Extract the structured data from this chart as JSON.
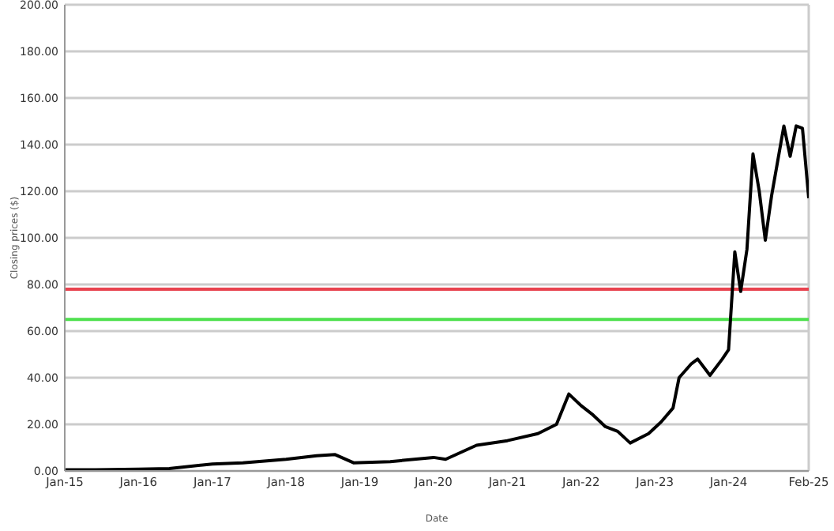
{
  "chart_data": {
    "type": "line",
    "xlabel": "Date",
    "ylabel": "Closing prices ($)",
    "x": [
      "2015-01",
      "2015-06",
      "2016-01",
      "2016-06",
      "2017-01",
      "2017-06",
      "2018-01",
      "2018-06",
      "2018-09",
      "2018-12",
      "2019-06",
      "2020-01",
      "2020-03",
      "2020-08",
      "2021-01",
      "2021-06",
      "2021-09",
      "2021-11",
      "2022-01",
      "2022-03",
      "2022-05",
      "2022-07",
      "2022-09",
      "2022-12",
      "2023-02",
      "2023-04",
      "2023-05",
      "2023-07",
      "2023-08",
      "2023-10",
      "2023-12",
      "2024-01",
      "2024-02",
      "2024-03",
      "2024-04",
      "2024-05",
      "2024-06",
      "2024-07",
      "2024-08",
      "2024-10",
      "2024-11",
      "2024-12",
      "2025-01",
      "2025-02"
    ],
    "series": [
      {
        "color": "#000000",
        "values": [
          0.5,
          0.5,
          0.8,
          1,
          3,
          3.5,
          5,
          6.5,
          7,
          3.5,
          4,
          5.8,
          5,
          11,
          13,
          16,
          20,
          33,
          28,
          24,
          19,
          17,
          12,
          16,
          21,
          27,
          40,
          46,
          48,
          41,
          48,
          52,
          94,
          77,
          95,
          136,
          120,
          99,
          118,
          148,
          135,
          148,
          147,
          117
        ]
      }
    ],
    "xlim": [
      "2015-01",
      "2025-02"
    ],
    "xticks": [
      {
        "value": "2015-01",
        "label": "Jan-15"
      },
      {
        "value": "2016-01",
        "label": "Jan-16"
      },
      {
        "value": "2017-01",
        "label": "Jan-17"
      },
      {
        "value": "2018-01",
        "label": "Jan-18"
      },
      {
        "value": "2019-01",
        "label": "Jan-19"
      },
      {
        "value": "2020-01",
        "label": "Jan-20"
      },
      {
        "value": "2021-01",
        "label": "Jan-21"
      },
      {
        "value": "2022-01",
        "label": "Jan-22"
      },
      {
        "value": "2023-01",
        "label": "Jan-23"
      },
      {
        "value": "2024-01",
        "label": "Jan-24"
      },
      {
        "value": "2025-02",
        "label": "Feb-25"
      }
    ],
    "ylim": [
      0,
      200
    ],
    "yticks": [
      {
        "value": 0,
        "label": "0.00"
      },
      {
        "value": 20,
        "label": "20.00"
      },
      {
        "value": 40,
        "label": "40.00"
      },
      {
        "value": 60,
        "label": "60.00"
      },
      {
        "value": 80,
        "label": "80.00"
      },
      {
        "value": 100,
        "label": "100.00"
      },
      {
        "value": 120,
        "label": "120.00"
      },
      {
        "value": 140,
        "label": "140.00"
      },
      {
        "value": 160,
        "label": "160.00"
      },
      {
        "value": 180,
        "label": "180.00"
      },
      {
        "value": 200,
        "label": "200.00"
      }
    ],
    "ref_lines": [
      {
        "axis": "y",
        "value": 78,
        "color": "#e8434f"
      },
      {
        "axis": "y",
        "value": 65,
        "color": "#4ee04e"
      }
    ],
    "grid": "y",
    "legend": false,
    "marker": "none",
    "line_style": "solid"
  }
}
